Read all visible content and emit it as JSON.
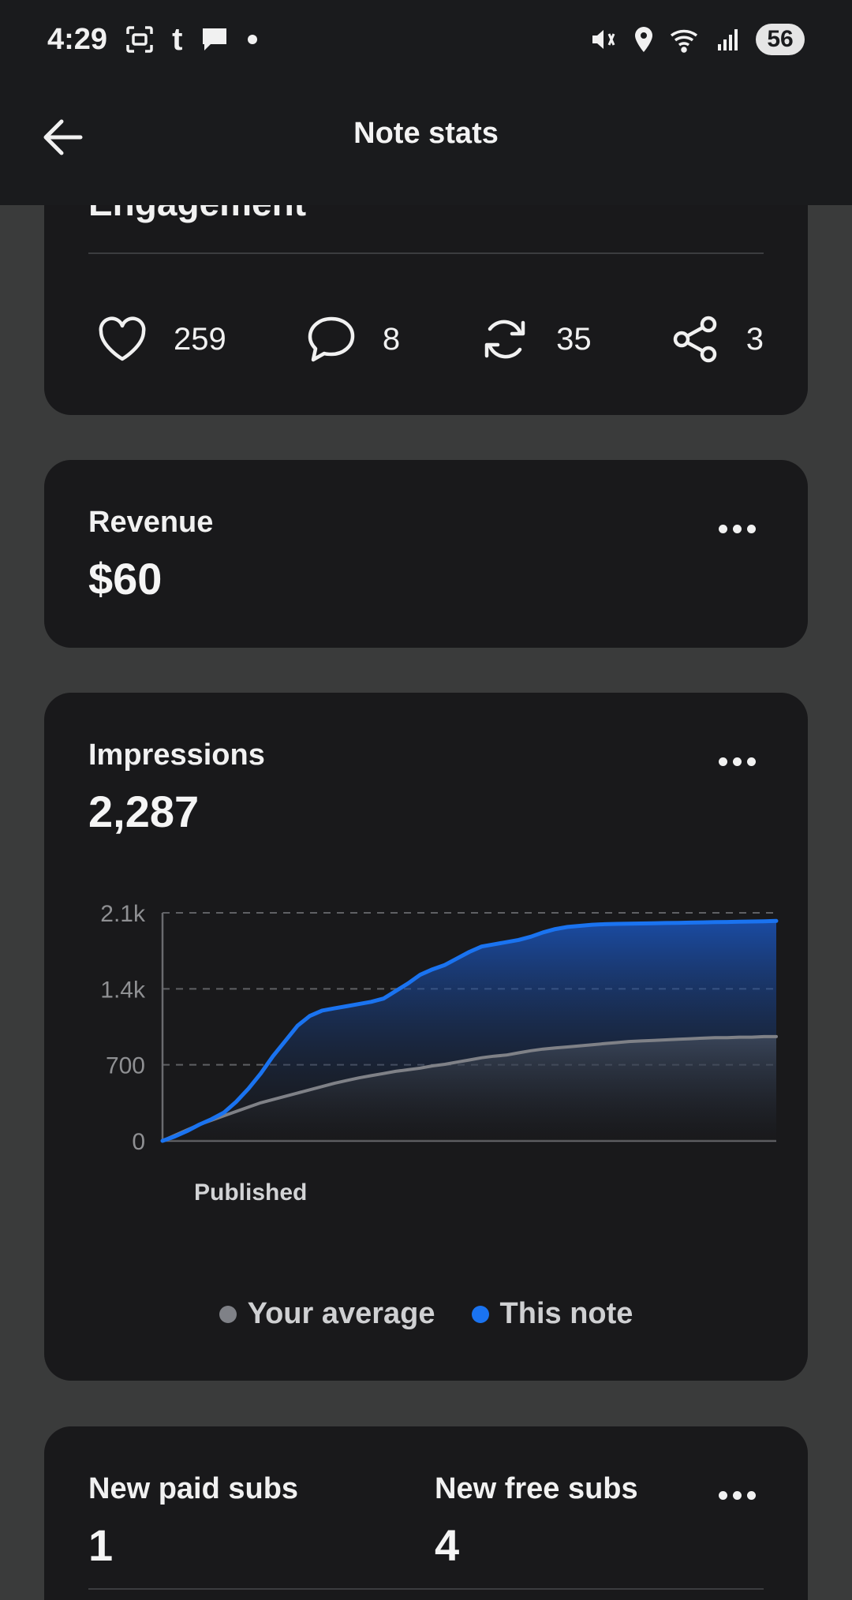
{
  "status_bar": {
    "time": "4:29",
    "notif_letter": "t",
    "battery": "56"
  },
  "header": {
    "title": "Note stats"
  },
  "engagement": {
    "title": "Engagement",
    "likes": "259",
    "comments": "8",
    "restacks": "35",
    "shares": "3"
  },
  "revenue": {
    "label": "Revenue",
    "value": "$60"
  },
  "impressions": {
    "label": "Impressions",
    "value": "2,287"
  },
  "subs": {
    "paid_label": "New paid subs",
    "paid_value": "1",
    "free_label": "New free subs",
    "free_value": "4"
  },
  "colors": {
    "this_note": "#1a73f0",
    "average": "#7f8187"
  },
  "chart_data": {
    "type": "area",
    "xlabel": "Published",
    "ylabel": "",
    "ylim": [
      0,
      2100
    ],
    "yticks": [
      "0",
      "700",
      "1.4k",
      "2.1k"
    ],
    "x": [
      0,
      2,
      4,
      6,
      8,
      10,
      12,
      14,
      16,
      18,
      20,
      22,
      24,
      26,
      28,
      30,
      32,
      34,
      36,
      38,
      40,
      42,
      44,
      46,
      48,
      50,
      52,
      54,
      56,
      58,
      60,
      62,
      64,
      66,
      68,
      70,
      72,
      74,
      76,
      78,
      80,
      82,
      84,
      86,
      88,
      90,
      92,
      94,
      96,
      98,
      100
    ],
    "series": [
      {
        "name": "Your average",
        "values": [
          0,
          50,
          100,
          150,
          190,
          230,
          270,
          310,
          350,
          380,
          410,
          440,
          470,
          500,
          530,
          555,
          580,
          600,
          620,
          640,
          655,
          670,
          690,
          705,
          725,
          745,
          765,
          780,
          790,
          810,
          830,
          845,
          855,
          865,
          875,
          885,
          895,
          905,
          915,
          920,
          925,
          930,
          935,
          940,
          945,
          950,
          950,
          955,
          955,
          960,
          960
        ]
      },
      {
        "name": "This note",
        "values": [
          0,
          40,
          90,
          150,
          200,
          260,
          360,
          480,
          620,
          780,
          920,
          1060,
          1150,
          1200,
          1220,
          1240,
          1260,
          1280,
          1310,
          1380,
          1450,
          1530,
          1580,
          1620,
          1680,
          1740,
          1790,
          1810,
          1830,
          1850,
          1880,
          1920,
          1950,
          1970,
          1980,
          1990,
          1995,
          1998,
          2000,
          2002,
          2004,
          2006,
          2008,
          2010,
          2012,
          2014,
          2016,
          2018,
          2020,
          2022,
          2025
        ]
      }
    ],
    "grid": true,
    "legend": "bottom"
  }
}
